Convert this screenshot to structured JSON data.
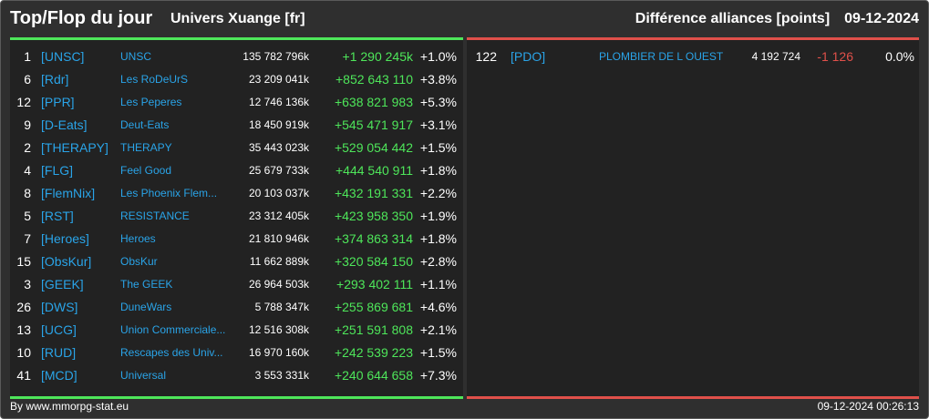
{
  "header": {
    "title": "Top/Flop du jour",
    "universe": "Univers Xuange [fr]",
    "section": "Différence alliances [points]",
    "date": "09-12-2024"
  },
  "top": [
    {
      "rank": "1",
      "tag": "[UNSC]",
      "name": "UNSC",
      "points": "135 782 796k",
      "diff": "+1 290 245k",
      "pct": "+1.0%"
    },
    {
      "rank": "6",
      "tag": "[Rdr]",
      "name": "Les RoDeUrS",
      "points": "23 209 041k",
      "diff": "+852 643 110",
      "pct": "+3.8%"
    },
    {
      "rank": "12",
      "tag": "[PPR]",
      "name": "Les Peperes",
      "points": "12 746 136k",
      "diff": "+638 821 983",
      "pct": "+5.3%"
    },
    {
      "rank": "9",
      "tag": "[D-Eats]",
      "name": "Deut-Eats",
      "points": "18 450 919k",
      "diff": "+545 471 917",
      "pct": "+3.1%"
    },
    {
      "rank": "2",
      "tag": "[THERAPY]",
      "name": "THERAPY",
      "points": "35 443 023k",
      "diff": "+529 054 442",
      "pct": "+1.5%"
    },
    {
      "rank": "4",
      "tag": "[FLG]",
      "name": "Feel Good",
      "points": "25 679 733k",
      "diff": "+444 540 911",
      "pct": "+1.8%"
    },
    {
      "rank": "8",
      "tag": "[FlemNix]",
      "name": "Les Phoenix Flem...",
      "points": "20 103 037k",
      "diff": "+432 191 331",
      "pct": "+2.2%"
    },
    {
      "rank": "5",
      "tag": "[RST]",
      "name": "RESISTANCE",
      "points": "23 312 405k",
      "diff": "+423 958 350",
      "pct": "+1.9%"
    },
    {
      "rank": "7",
      "tag": "[Heroes]",
      "name": "Heroes",
      "points": "21 810 946k",
      "diff": "+374 863 314",
      "pct": "+1.8%"
    },
    {
      "rank": "15",
      "tag": "[ObsKur]",
      "name": "ObsKur",
      "points": "11 662 889k",
      "diff": "+320 584 150",
      "pct": "+2.8%"
    },
    {
      "rank": "3",
      "tag": "[GEEK]",
      "name": "The GEEK",
      "points": "26 964 503k",
      "diff": "+293 402 111",
      "pct": "+1.1%"
    },
    {
      "rank": "26",
      "tag": "[DWS]",
      "name": "DuneWars",
      "points": "5 788 347k",
      "diff": "+255 869 681",
      "pct": "+4.6%"
    },
    {
      "rank": "13",
      "tag": "[UCG]",
      "name": "Union Commerciale...",
      "points": "12 516 308k",
      "diff": "+251 591 808",
      "pct": "+2.1%"
    },
    {
      "rank": "10",
      "tag": "[RUD]",
      "name": "Rescapes des Univ...",
      "points": "16 970 160k",
      "diff": "+242 539 223",
      "pct": "+1.5%"
    },
    {
      "rank": "41",
      "tag": "[MCD]",
      "name": "Universal",
      "points": "3 553 331k",
      "diff": "+240 644 658",
      "pct": "+7.3%"
    }
  ],
  "flop": [
    {
      "rank": "122",
      "tag": "[PDO]",
      "name": "PLOMBIER DE L OUEST",
      "points": "4 192 724",
      "diff": "-1 126",
      "pct": "0.0%"
    }
  ],
  "footer": {
    "credit": "By www.mmorpg-stat.eu",
    "timestamp": "09-12-2024 00:26:13"
  },
  "colors": {
    "positive": "#4ee65a",
    "negative": "#e0504a",
    "link": "#2aa4e8",
    "background": "#2f2f2f",
    "panel": "#222222"
  }
}
